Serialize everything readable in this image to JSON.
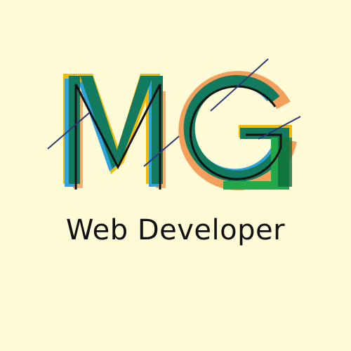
{
  "logo": {
    "monogram": "MG",
    "colors": {
      "yellow": "#F5B800",
      "orange": "#F5A05A",
      "blue": "#2EA3E0",
      "teal": "#127A5F",
      "green": "#22A74A",
      "dark_green": "#0E6B3C",
      "stroke": "#111111",
      "slash": "#2C3A7A"
    }
  },
  "tagline": "Web Developer",
  "background": "#FFFBD6"
}
